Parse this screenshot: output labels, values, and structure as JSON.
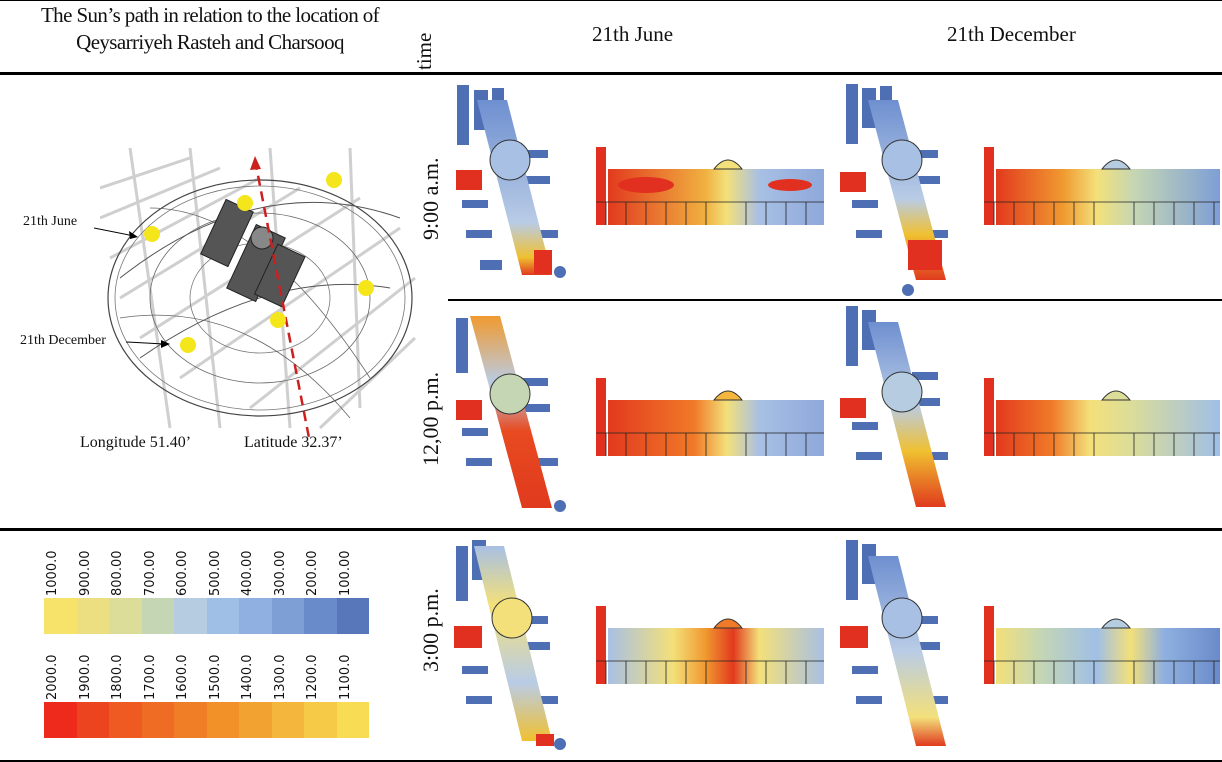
{
  "header": {
    "title_line1": "The Sun’s path in relation to the location of",
    "title_line2": "Qeysarriyeh Rasteh and Charsooq",
    "time_label": "time",
    "june_label": "21th June",
    "december_label": "21th December"
  },
  "sun_path": {
    "june_annotation": "21th June",
    "december_annotation": "21th December",
    "longitude": "Longitude  51.40’",
    "latitude": "Latitude  32.37’"
  },
  "rows": [
    {
      "time": "9:00 a.m."
    },
    {
      "time": "12,00 p.m."
    },
    {
      "time": "3:00 p.m."
    }
  ],
  "legend_low": {
    "labels": [
      "1000.0",
      "900.00",
      "800.00",
      "700.00",
      "600.00",
      "500.00",
      "400.00",
      "300.00",
      "200.00",
      "100.00"
    ],
    "colors": [
      "#f7e36a",
      "#ecdf82",
      "#dcdd98",
      "#c4d6b4",
      "#b6cce0",
      "#a0bfe6",
      "#8fb0e0",
      "#7e9ed6",
      "#6a8bca",
      "#5877ba"
    ]
  },
  "legend_high": {
    "labels": [
      "2000.0",
      "1900.0",
      "1800.0",
      "1700.0",
      "1600.0",
      "1500.0",
      "1400.0",
      "1300.0",
      "1200.0",
      "1100.0"
    ],
    "colors": [
      "#ee2a1c",
      "#ed4420",
      "#ee5a22",
      "#ef6c24",
      "#f07e26",
      "#f19128",
      "#f2a230",
      "#f4b63c",
      "#f6ca46",
      "#f8dc54"
    ]
  }
}
